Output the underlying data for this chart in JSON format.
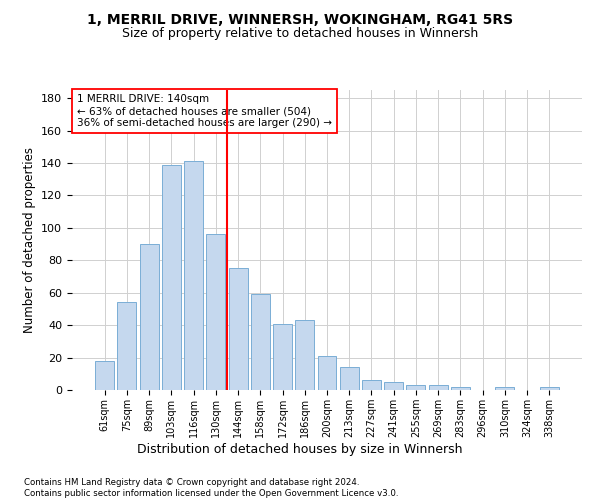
{
  "title1": "1, MERRIL DRIVE, WINNERSH, WOKINGHAM, RG41 5RS",
  "title2": "Size of property relative to detached houses in Winnersh",
  "xlabel": "Distribution of detached houses by size in Winnersh",
  "ylabel": "Number of detached properties",
  "categories": [
    "61sqm",
    "75sqm",
    "89sqm",
    "103sqm",
    "116sqm",
    "130sqm",
    "144sqm",
    "158sqm",
    "172sqm",
    "186sqm",
    "200sqm",
    "213sqm",
    "227sqm",
    "241sqm",
    "255sqm",
    "269sqm",
    "283sqm",
    "296sqm",
    "310sqm",
    "324sqm",
    "338sqm"
  ],
  "values": [
    18,
    54,
    90,
    139,
    141,
    96,
    75,
    59,
    41,
    43,
    21,
    14,
    6,
    5,
    3,
    3,
    2,
    0,
    2,
    0,
    2
  ],
  "bar_color": "#c5d8ee",
  "bar_edge_color": "#7aaed6",
  "vline_color": "red",
  "annotation_line1": "1 MERRIL DRIVE: 140sqm",
  "annotation_line2": "← 63% of detached houses are smaller (504)",
  "annotation_line3": "36% of semi-detached houses are larger (290) →",
  "annotation_box_color": "white",
  "annotation_edge_color": "red",
  "ylim": [
    0,
    185
  ],
  "yticks": [
    0,
    20,
    40,
    60,
    80,
    100,
    120,
    140,
    160,
    180
  ],
  "footer": "Contains HM Land Registry data © Crown copyright and database right 2024.\nContains public sector information licensed under the Open Government Licence v3.0.",
  "background_color": "#ffffff",
  "grid_color": "#d0d0d0"
}
